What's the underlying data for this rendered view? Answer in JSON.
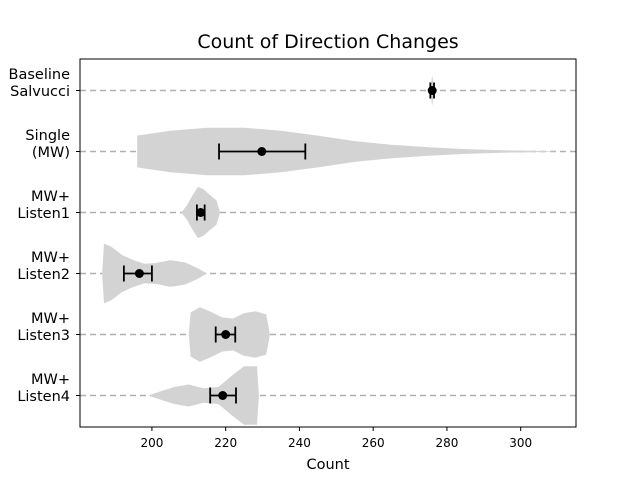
{
  "chart_data": {
    "type": "violin",
    "title": "Count of Direction Changes",
    "xlabel": "Count",
    "ylabel": "",
    "xlim": [
      180.5,
      315
    ],
    "xticks": [
      200,
      220,
      240,
      260,
      280,
      300
    ],
    "orientation": "horizontal",
    "grid": "dashed horizontal lines at each category",
    "colors": {
      "violin": "#d3d3d3",
      "marker": "#000000",
      "grid": "#b0b0b0"
    },
    "categories": [
      {
        "label": [
          "Baseline",
          "Salvucci"
        ],
        "mean": 276,
        "ci": [
          275.5,
          276.5
        ],
        "density": [
          [
            275.3,
            0.0
          ],
          [
            275.7,
            0.12
          ],
          [
            276.0,
            0.25
          ],
          [
            276.3,
            0.12
          ],
          [
            276.7,
            0.0
          ]
        ]
      },
      {
        "label": [
          "Single",
          "(MW)"
        ],
        "mean": 229.8,
        "ci": [
          218.2,
          241.6
        ],
        "density": [
          [
            196,
            0.26
          ],
          [
            205,
            0.34
          ],
          [
            215,
            0.39
          ],
          [
            225,
            0.39
          ],
          [
            235,
            0.34
          ],
          [
            245,
            0.26
          ],
          [
            255,
            0.17
          ],
          [
            265,
            0.11
          ],
          [
            275,
            0.07
          ],
          [
            285,
            0.04
          ],
          [
            295,
            0.02
          ],
          [
            305,
            0.01
          ],
          [
            310,
            0.0
          ]
        ]
      },
      {
        "label": [
          "MW+",
          "Listen1"
        ],
        "mean": 213.2,
        "ci": [
          212.2,
          214.3
        ],
        "density": [
          [
            208,
            0.0
          ],
          [
            209.5,
            0.12
          ],
          [
            211,
            0.28
          ],
          [
            212.5,
            0.42
          ],
          [
            214,
            0.38
          ],
          [
            215.5,
            0.3
          ],
          [
            217.5,
            0.2
          ],
          [
            218.5,
            0.0
          ]
        ]
      },
      {
        "label": [
          "MW+",
          "Listen2"
        ],
        "mean": 196.6,
        "ci": [
          192.4,
          200.0
        ],
        "density": [
          [
            186.5,
            0.0
          ],
          [
            187,
            0.49
          ],
          [
            189,
            0.44
          ],
          [
            192,
            0.3
          ],
          [
            195,
            0.22
          ],
          [
            198,
            0.16
          ],
          [
            201,
            0.17
          ],
          [
            205,
            0.22
          ],
          [
            209,
            0.18
          ],
          [
            212,
            0.1
          ],
          [
            215,
            0.0
          ]
        ]
      },
      {
        "label": [
          "MW+",
          "Listen3"
        ],
        "mean": 220.0,
        "ci": [
          217.3,
          222.6
        ],
        "density": [
          [
            210,
            0.0
          ],
          [
            210.5,
            0.36
          ],
          [
            213,
            0.45
          ],
          [
            216,
            0.37
          ],
          [
            219,
            0.28
          ],
          [
            222,
            0.26
          ],
          [
            225,
            0.35
          ],
          [
            228,
            0.38
          ],
          [
            231,
            0.33
          ],
          [
            232,
            0.0
          ]
        ]
      },
      {
        "label": [
          "MW+",
          "Listen4"
        ],
        "mean": 219.2,
        "ci": [
          215.8,
          222.8
        ],
        "density": [
          [
            199,
            0.0
          ],
          [
            202,
            0.06
          ],
          [
            206,
            0.14
          ],
          [
            210,
            0.18
          ],
          [
            214,
            0.12
          ],
          [
            218,
            0.14
          ],
          [
            222,
            0.34
          ],
          [
            225,
            0.48
          ],
          [
            228.5,
            0.48
          ],
          [
            229,
            0.0
          ]
        ]
      }
    ]
  }
}
